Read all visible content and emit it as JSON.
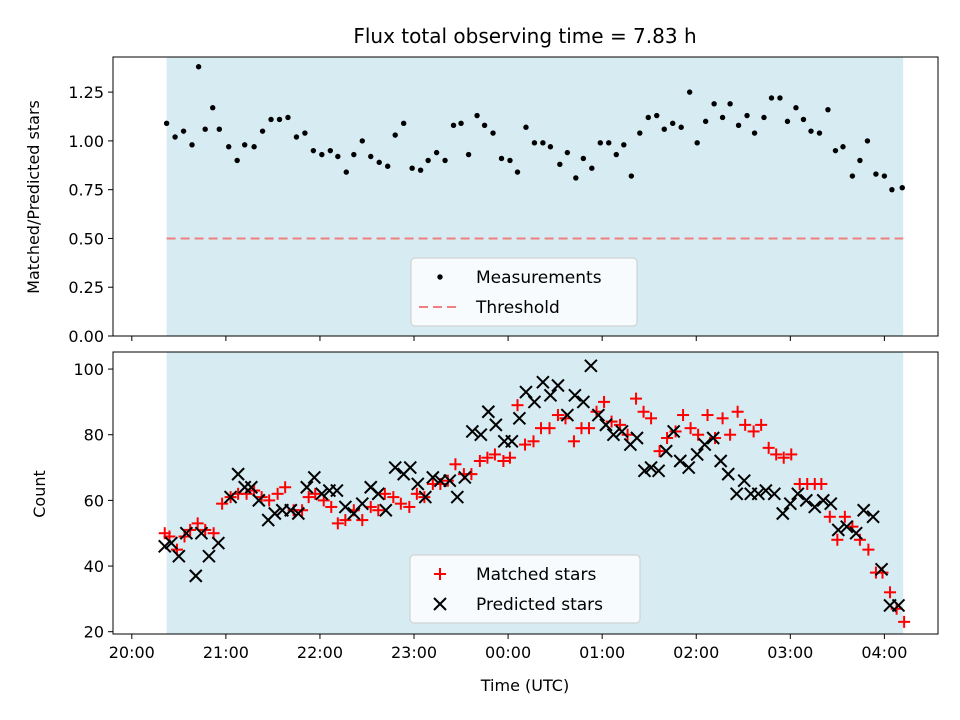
{
  "colors": {
    "span": "#add8e6",
    "measurement": "#000000",
    "threshold": "#f08080",
    "matched": "#ff0000",
    "predicted": "#000000"
  },
  "chart_data": [
    {
      "type": "scatter",
      "title": "Flux total observing time = 7.83 h",
      "xlabel": "",
      "ylabel": "Matched/Predicted stars",
      "ylim": [
        0,
        1.43
      ],
      "yticks": [
        "0.00",
        "0.25",
        "0.50",
        "0.75",
        "1.00",
        "1.25"
      ],
      "observing_span_hours": [
        0.37,
        8.2
      ],
      "threshold": 0.5,
      "legend": {
        "position": "lower-center",
        "entries": [
          "Measurements",
          "Threshold"
        ]
      },
      "series": [
        {
          "name": "Measurements",
          "x": [
            0.37,
            0.46,
            0.55,
            0.64,
            0.71,
            0.78,
            0.86,
            0.93,
            1.03,
            1.12,
            1.2,
            1.3,
            1.39,
            1.48,
            1.57,
            1.66,
            1.75,
            1.84,
            1.93,
            2.02,
            2.11,
            2.19,
            2.28,
            2.36,
            2.45,
            2.54,
            2.63,
            2.72,
            2.8,
            2.89,
            2.98,
            3.07,
            3.15,
            3.24,
            3.33,
            3.42,
            3.5,
            3.58,
            3.67,
            3.75,
            3.84,
            3.93,
            4.02,
            4.1,
            4.19,
            4.28,
            4.37,
            4.45,
            4.55,
            4.63,
            4.72,
            4.8,
            4.89,
            4.98,
            5.07,
            5.15,
            5.23,
            5.31,
            5.4,
            5.49,
            5.58,
            5.66,
            5.75,
            5.84,
            5.93,
            6.01,
            6.1,
            6.19,
            6.28,
            6.36,
            6.45,
            6.54,
            6.62,
            6.72,
            6.8,
            6.89,
            6.97,
            7.06,
            7.14,
            7.22,
            7.31,
            7.4,
            7.48,
            7.56,
            7.66,
            7.74,
            7.82,
            7.91,
            8.0,
            8.08,
            8.19
          ],
          "y": [
            1.09,
            1.02,
            1.05,
            0.98,
            1.38,
            1.06,
            1.17,
            1.06,
            0.97,
            0.9,
            0.98,
            0.97,
            1.05,
            1.11,
            1.11,
            1.12,
            1.02,
            1.04,
            0.95,
            0.93,
            0.95,
            0.92,
            0.84,
            0.93,
            1.0,
            0.92,
            0.89,
            0.87,
            1.03,
            1.09,
            0.86,
            0.85,
            0.9,
            0.94,
            0.9,
            1.08,
            1.09,
            0.93,
            1.13,
            1.08,
            1.04,
            0.91,
            0.9,
            0.84,
            1.07,
            0.99,
            0.99,
            0.97,
            0.88,
            0.94,
            0.81,
            0.91,
            0.86,
            0.99,
            0.99,
            0.93,
            0.98,
            0.82,
            1.04,
            1.12,
            1.13,
            1.06,
            1.09,
            1.07,
            1.25,
            0.99,
            1.1,
            1.19,
            1.12,
            1.19,
            1.08,
            1.13,
            1.04,
            1.12,
            1.22,
            1.22,
            1.1,
            1.17,
            1.11,
            1.05,
            1.04,
            1.16,
            0.95,
            0.97,
            0.82,
            0.9,
            1.0,
            0.83,
            0.82,
            0.75,
            0.76
          ]
        }
      ]
    },
    {
      "type": "scatter",
      "title": "",
      "xlabel": "Time (UTC)",
      "ylabel": "Count",
      "ylim": [
        19.3,
        105.2
      ],
      "yticks": [
        "20",
        "40",
        "60",
        "80",
        "100"
      ],
      "xlim_hours_after_20h": [
        -0.2,
        8.57
      ],
      "categories": [
        "20:00",
        "21:00",
        "22:00",
        "23:00",
        "00:00",
        "01:00",
        "02:00",
        "03:00",
        "04:00"
      ],
      "observing_span_hours": [
        0.37,
        8.2
      ],
      "legend": {
        "position": "lower-center",
        "entries": [
          "Matched stars",
          "Predicted stars"
        ]
      },
      "series": [
        {
          "name": "Matched stars",
          "x": [
            0.35,
            0.4,
            0.48,
            0.56,
            0.62,
            0.7,
            0.78,
            0.87,
            0.96,
            1.05,
            1.13,
            1.22,
            1.3,
            1.38,
            1.46,
            1.55,
            1.63,
            1.72,
            1.81,
            1.88,
            1.95,
            2.04,
            2.12,
            2.19,
            2.27,
            2.36,
            2.45,
            2.54,
            2.62,
            2.69,
            2.78,
            2.86,
            2.95,
            3.03,
            3.11,
            3.2,
            3.28,
            3.36,
            3.44,
            3.53,
            3.61,
            3.7,
            3.78,
            3.86,
            3.95,
            4.02,
            4.1,
            4.18,
            4.27,
            4.35,
            4.44,
            4.53,
            4.61,
            4.7,
            4.78,
            4.86,
            4.94,
            5.02,
            5.1,
            5.19,
            5.27,
            5.36,
            5.44,
            5.52,
            5.61,
            5.69,
            5.78,
            5.86,
            5.94,
            6.02,
            6.12,
            6.2,
            6.28,
            6.36,
            6.44,
            6.52,
            6.61,
            6.69,
            6.77,
            6.85,
            6.93,
            7.01,
            7.1,
            7.18,
            7.26,
            7.33,
            7.42,
            7.5,
            7.58,
            7.66,
            7.74,
            7.83,
            7.91,
            7.98,
            8.06,
            8.13,
            8.21
          ],
          "y": [
            50,
            49,
            45,
            49,
            51,
            53,
            51,
            50,
            59,
            61,
            62,
            62,
            63,
            61,
            60,
            62,
            64,
            57,
            57,
            61,
            62,
            60,
            58,
            53,
            54,
            57,
            54,
            58,
            57,
            62,
            61,
            59,
            58,
            62,
            61,
            65,
            65,
            66,
            71,
            68,
            68,
            72,
            73,
            74,
            72,
            73,
            89,
            77,
            78,
            82,
            82,
            86,
            85,
            78,
            82,
            82,
            87,
            90,
            84,
            83,
            80,
            91,
            87,
            85,
            75,
            79,
            81,
            86,
            82,
            80,
            86,
            79,
            85,
            80,
            87,
            83,
            81,
            83,
            76,
            74,
            73,
            74,
            65,
            65,
            65,
            65,
            55,
            48,
            55,
            52,
            48,
            45,
            38,
            38,
            32,
            27,
            23
          ]
        },
        {
          "name": "Predicted stars",
          "x": [
            0.35,
            0.42,
            0.5,
            0.58,
            0.68,
            0.74,
            0.82,
            0.92,
            1.05,
            1.13,
            1.2,
            1.27,
            1.35,
            1.45,
            1.52,
            1.6,
            1.69,
            1.77,
            1.86,
            1.94,
            2.02,
            2.1,
            2.18,
            2.27,
            2.36,
            2.45,
            2.54,
            2.62,
            2.7,
            2.8,
            2.89,
            2.96,
            3.04,
            3.12,
            3.2,
            3.28,
            3.38,
            3.46,
            3.54,
            3.62,
            3.71,
            3.79,
            3.87,
            3.96,
            4.04,
            4.12,
            4.19,
            4.28,
            4.37,
            4.45,
            4.53,
            4.63,
            4.71,
            4.8,
            4.88,
            4.96,
            5.04,
            5.12,
            5.21,
            5.3,
            5.37,
            5.45,
            5.52,
            5.6,
            5.68,
            5.76,
            5.83,
            5.92,
            6.01,
            6.09,
            6.18,
            6.26,
            6.34,
            6.43,
            6.51,
            6.58,
            6.66,
            6.74,
            6.83,
            6.92,
            7.0,
            7.08,
            7.17,
            7.26,
            7.35,
            7.43,
            7.51,
            7.6,
            7.7,
            7.78,
            7.88,
            7.97,
            8.06,
            8.15
          ],
          "y": [
            46,
            47,
            43,
            50,
            37,
            50,
            43,
            47,
            61,
            68,
            64,
            64,
            60,
            54,
            56,
            57,
            57,
            56,
            64,
            67,
            62,
            63,
            63,
            58,
            56,
            59,
            64,
            62,
            57,
            70,
            68,
            70,
            65,
            61,
            67,
            66,
            66,
            61,
            67,
            81,
            80,
            87,
            83,
            78,
            78,
            85,
            93,
            90,
            96,
            92,
            95,
            86,
            92,
            90,
            101,
            86,
            83,
            80,
            81,
            77,
            79,
            69,
            70,
            69,
            75,
            81,
            72,
            70,
            74,
            77,
            79,
            72,
            68,
            62,
            66,
            62,
            62,
            63,
            62,
            56,
            59,
            62,
            60,
            58,
            60,
            59,
            51,
            52,
            50,
            57,
            55,
            39,
            28,
            28
          ]
        }
      ]
    }
  ]
}
